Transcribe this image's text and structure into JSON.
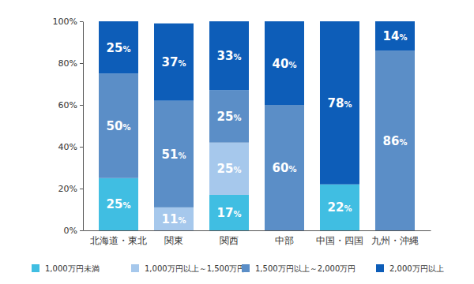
{
  "chart_data": {
    "type": "bar",
    "stacked": true,
    "data_labels": true,
    "grid": false,
    "legend": "bottom",
    "categories": [
      "北海道・東北",
      "関東",
      "関西",
      "中部",
      "中国・四国",
      "九州・沖縄"
    ],
    "series": [
      {
        "name": "1,000万円未満",
        "color": "#40bee2",
        "values": [
          25,
          null,
          17,
          null,
          22,
          null
        ],
        "value_labels": [
          "25%",
          null,
          "17%",
          null,
          "22%",
          null
        ]
      },
      {
        "name": "1,000万円以上～1,500万円",
        "color": "#a6c8ec",
        "values": [
          null,
          11,
          25,
          null,
          null,
          null
        ],
        "value_labels": [
          null,
          "11%",
          "25%",
          null,
          null,
          null
        ]
      },
      {
        "name": "1,500万円以上～2,000万円",
        "color": "#5b8ec7",
        "values": [
          50,
          51,
          25,
          60,
          null,
          86
        ],
        "value_labels": [
          "50%",
          "51%",
          "25%",
          "60%",
          null,
          "86%"
        ]
      },
      {
        "name": "2,000万円以上",
        "color": "#0d5db8",
        "values": [
          25,
          37,
          33,
          40,
          78,
          14
        ],
        "value_labels": [
          "25%",
          "37%",
          "33%",
          "40%",
          "78%",
          "14%"
        ]
      }
    ],
    "ylim": [
      0,
      100
    ],
    "yticks": [
      {
        "value": 0,
        "label": "0%"
      },
      {
        "value": 20,
        "label": "20%"
      },
      {
        "value": 40,
        "label": "40%"
      },
      {
        "value": 60,
        "label": "60%"
      },
      {
        "value": 80,
        "label": "80%"
      },
      {
        "value": 100,
        "label": "100%"
      }
    ]
  }
}
